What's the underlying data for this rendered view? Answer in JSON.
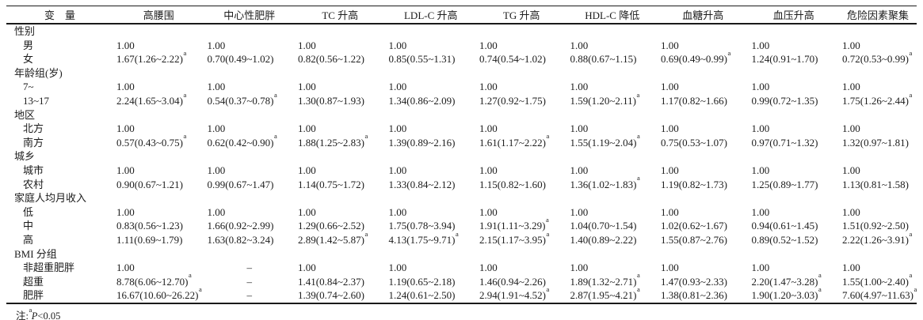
{
  "table": {
    "columns": [
      "变　量",
      "高腰围",
      "中心性肥胖",
      "TC 升高",
      "LDL-C 升高",
      "TG 升高",
      "HDL-C 降低",
      "血糖升高",
      "血压升高",
      "危险因素聚集"
    ],
    "rows": [
      {
        "kind": "group",
        "label": "性别"
      },
      {
        "kind": "data",
        "label": "男",
        "cells": [
          "1.00",
          "1.00",
          "1.00",
          "1.00",
          "1.00",
          "1.00",
          "1.00",
          "1.00",
          "1.00"
        ]
      },
      {
        "kind": "data",
        "label": "女",
        "cells": [
          "1.67(1.26~2.22)^a",
          "0.70(0.49~1.02)",
          "0.82(0.56~1.22)",
          "0.85(0.55~1.31)",
          "0.74(0.54~1.02)",
          "0.88(0.67~1.15)",
          "0.69(0.49~0.99)^a",
          "1.24(0.91~1.70)",
          "0.72(0.53~0.99)^a"
        ]
      },
      {
        "kind": "group",
        "label": "年龄组(岁)"
      },
      {
        "kind": "data",
        "label": "7~",
        "cells": [
          "1.00",
          "1.00",
          "1.00",
          "1.00",
          "1.00",
          "1.00",
          "1.00",
          "1.00",
          "1.00"
        ]
      },
      {
        "kind": "data",
        "label": "13~17",
        "cells": [
          "2.24(1.65~3.04)^a",
          "0.54(0.37~0.78)^a",
          "1.30(0.87~1.93)",
          "1.34(0.86~2.09)",
          "1.27(0.92~1.75)",
          "1.59(1.20~2.11)^a",
          "1.17(0.82~1.66)",
          "0.99(0.72~1.35)",
          "1.75(1.26~2.44)^a"
        ]
      },
      {
        "kind": "group",
        "label": "地区"
      },
      {
        "kind": "data",
        "label": "北方",
        "cells": [
          "1.00",
          "1.00",
          "1.00",
          "1.00",
          "1.00",
          "1.00",
          "1.00",
          "1.00",
          "1.00"
        ]
      },
      {
        "kind": "data",
        "label": "南方",
        "cells": [
          "0.57(0.43~0.75)^a",
          "0.62(0.42~0.90)^a",
          "1.88(1.25~2.83)^a",
          "1.39(0.89~2.16)",
          "1.61(1.17~2.22)^a",
          "1.55(1.19~2.04)^a",
          "0.75(0.53~1.07)",
          "0.97(0.71~1.32)",
          "1.32(0.97~1.81)"
        ]
      },
      {
        "kind": "group",
        "label": "城乡"
      },
      {
        "kind": "data",
        "label": "城市",
        "cells": [
          "1.00",
          "1.00",
          "1.00",
          "1.00",
          "1.00",
          "1.00",
          "1.00",
          "1.00",
          "1.00"
        ]
      },
      {
        "kind": "data",
        "label": "农村",
        "cells": [
          "0.90(0.67~1.21)",
          "0.99(0.67~1.47)",
          "1.14(0.75~1.72)",
          "1.33(0.84~2.12)",
          "1.15(0.82~1.60)",
          "1.36(1.02~1.83)^a",
          "1.19(0.82~1.73)",
          "1.25(0.89~1.77)",
          "1.13(0.81~1.58)"
        ]
      },
      {
        "kind": "group",
        "label": "家庭人均月收入"
      },
      {
        "kind": "data",
        "label": "低",
        "cells": [
          "1.00",
          "1.00",
          "1.00",
          "1.00",
          "1.00",
          "1.00",
          "1.00",
          "1.00",
          "1.00"
        ]
      },
      {
        "kind": "data",
        "label": "中",
        "cells": [
          "0.83(0.56~1.23)",
          "1.66(0.92~2.99)",
          "1.29(0.66~2.52)",
          "1.75(0.78~3.94)",
          "1.91(1.11~3.29)^a",
          "1.04(0.70~1.54)",
          "1.02(0.62~1.67)",
          "0.94(0.61~1.45)",
          "1.51(0.92~2.50)"
        ]
      },
      {
        "kind": "data",
        "label": "高",
        "cells": [
          "1.11(0.69~1.79)",
          "1.63(0.82~3.24)",
          "2.89(1.42~5.87)^a",
          "4.13(1.75~9.71)^a",
          "2.15(1.17~3.95)^a",
          "1.40(0.89~2.22)",
          "1.55(0.87~2.76)",
          "0.89(0.52~1.52)",
          "2.22(1.26~3.91)^a"
        ]
      },
      {
        "kind": "group",
        "label": "BMI 分组"
      },
      {
        "kind": "data",
        "label": "非超重肥胖",
        "cells": [
          "1.00",
          "–",
          "1.00",
          "1.00",
          "1.00",
          "1.00",
          "1.00",
          "1.00",
          "1.00"
        ]
      },
      {
        "kind": "data",
        "label": "超重",
        "cells": [
          "8.78(6.06~12.70)^a",
          "–",
          "1.41(0.84~2.37)",
          "1.19(0.65~2.18)",
          "1.46(0.94~2.26)",
          "1.89(1.32~2.71)^a",
          "1.47(0.93~2.33)",
          "2.20(1.47~3.28)^a",
          "1.55(1.00~2.40)^a"
        ]
      },
      {
        "kind": "data",
        "label": "肥胖",
        "cells": [
          "16.67(10.60~26.22)^a",
          "–",
          "1.39(0.74~2.60)",
          "1.24(0.61~2.50)",
          "2.94(1.91~4.52)^a",
          "2.87(1.95~4.21)^a",
          "1.38(0.81~2.36)",
          "1.90(1.20~3.03)^a",
          "7.60(4.97~11.63)^a"
        ]
      }
    ],
    "note": {
      "prefix": "注:",
      "sup": "a",
      "p": "P",
      "rest": "<0.05"
    }
  }
}
